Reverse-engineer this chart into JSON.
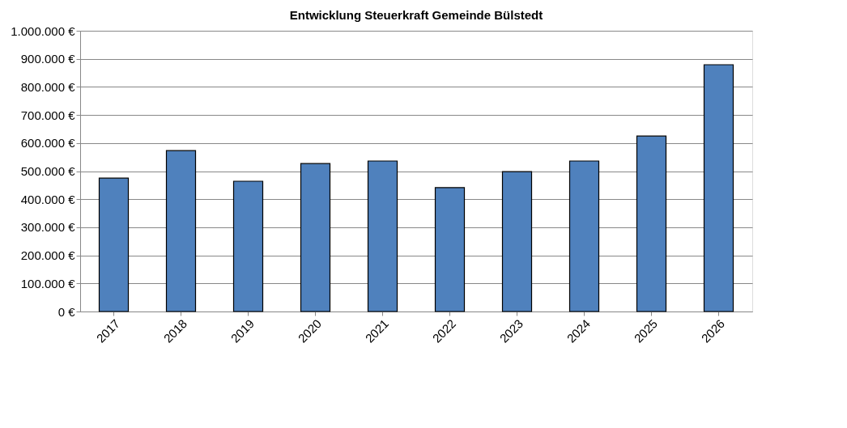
{
  "chart_data": {
    "type": "bar",
    "title": "Entwicklung Steuerkraft Gemeinde Bülstedt",
    "categories": [
      "2017",
      "2018",
      "2019",
      "2020",
      "2021",
      "2022",
      "2023",
      "2024",
      "2025",
      "2026"
    ],
    "values": [
      475000,
      573000,
      464000,
      527000,
      536000,
      441000,
      498000,
      536000,
      625000,
      879000
    ],
    "color": "#4f81bd",
    "ylim": [
      0,
      1000000
    ],
    "yticks": [
      {
        "value": 0,
        "label": "0 €"
      },
      {
        "value": 100000,
        "label": "100.000 €"
      },
      {
        "value": 200000,
        "label": "200.000 €"
      },
      {
        "value": 300000,
        "label": "300.000 €"
      },
      {
        "value": 400000,
        "label": "400.000 €"
      },
      {
        "value": 500000,
        "label": "500.000 €"
      },
      {
        "value": 600000,
        "label": "600.000 €"
      },
      {
        "value": 700000,
        "label": "700.000 €"
      },
      {
        "value": 800000,
        "label": "800.000 €"
      },
      {
        "value": 900000,
        "label": "900.000 €"
      },
      {
        "value": 1000000,
        "label": "1.000.000 €"
      }
    ],
    "grid": "y"
  }
}
